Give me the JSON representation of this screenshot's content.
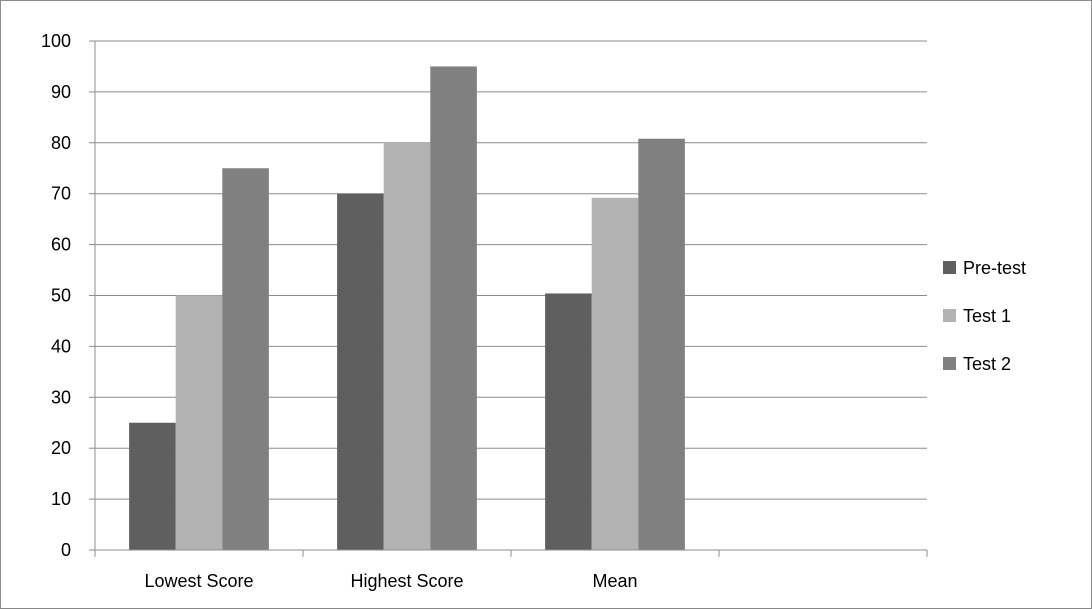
{
  "chart_data": {
    "type": "bar",
    "title": "",
    "xlabel": "",
    "ylabel": "",
    "categories": [
      "Lowest Score",
      "Highest Score",
      "Mean",
      ""
    ],
    "series": [
      {
        "name": "Pre-test",
        "color": "#5f5f5f",
        "values": [
          25,
          70,
          50.4,
          null
        ]
      },
      {
        "name": "Test 1",
        "color": "#b3b3b3",
        "values": [
          50,
          80,
          69.2,
          null
        ]
      },
      {
        "name": "Test 2",
        "color": "#808080",
        "values": [
          75,
          95,
          80.8,
          null
        ]
      }
    ],
    "ylim": [
      0,
      100
    ],
    "yticks": [
      0,
      10,
      20,
      30,
      40,
      50,
      60,
      70,
      80,
      90,
      100
    ],
    "grid": true,
    "legend_position": "right"
  }
}
